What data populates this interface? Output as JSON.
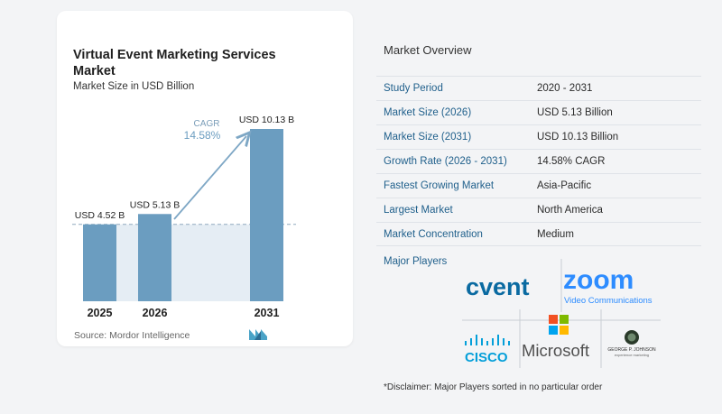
{
  "chart_data": {
    "type": "bar",
    "title": "Virtual Event Marketing Services Market",
    "subtitle": "Market Size in USD Billion",
    "categories": [
      "2025",
      "2026",
      "2031"
    ],
    "values": [
      4.52,
      5.13,
      10.13
    ],
    "data_labels": [
      "USD 4.52 B",
      "USD 5.13 B",
      "USD 10.13 B"
    ],
    "annotation": {
      "label": "CAGR",
      "value": "14.58%"
    },
    "ylim": [
      0,
      10.13
    ],
    "colors": {
      "bar": "#6b9dc0",
      "bar_light": "#e5edf4",
      "arrow": "#7ea7c5"
    }
  },
  "source": "Source:  Mordor Intelligence",
  "overview": {
    "title": "Market Overview",
    "rows": [
      {
        "key": "Study Period",
        "value": "2020 - 2031"
      },
      {
        "key": "Market Size (2026)",
        "value": "USD 5.13 Billion"
      },
      {
        "key": "Market Size (2031)",
        "value": "USD 10.13 Billion"
      },
      {
        "key": "Growth Rate (2026 - 2031)",
        "value": "14.58% CAGR"
      },
      {
        "key": "Fastest Growing Market",
        "value": "Asia-Pacific"
      },
      {
        "key": "Largest Market",
        "value": "North America"
      },
      {
        "key": "Market Concentration",
        "value": "Medium"
      }
    ]
  },
  "players": {
    "title": "Major Players",
    "logos": {
      "cvent": "cvent",
      "zoom": "zoom",
      "zoom_sub": "Video Communications",
      "cisco": "CISCO",
      "microsoft": "Microsoft",
      "george": "GEORGE P. JOHNSON",
      "george_sub": "experience marketing"
    }
  },
  "disclaimer": "*Disclaimer: Major Players sorted in no particular order"
}
